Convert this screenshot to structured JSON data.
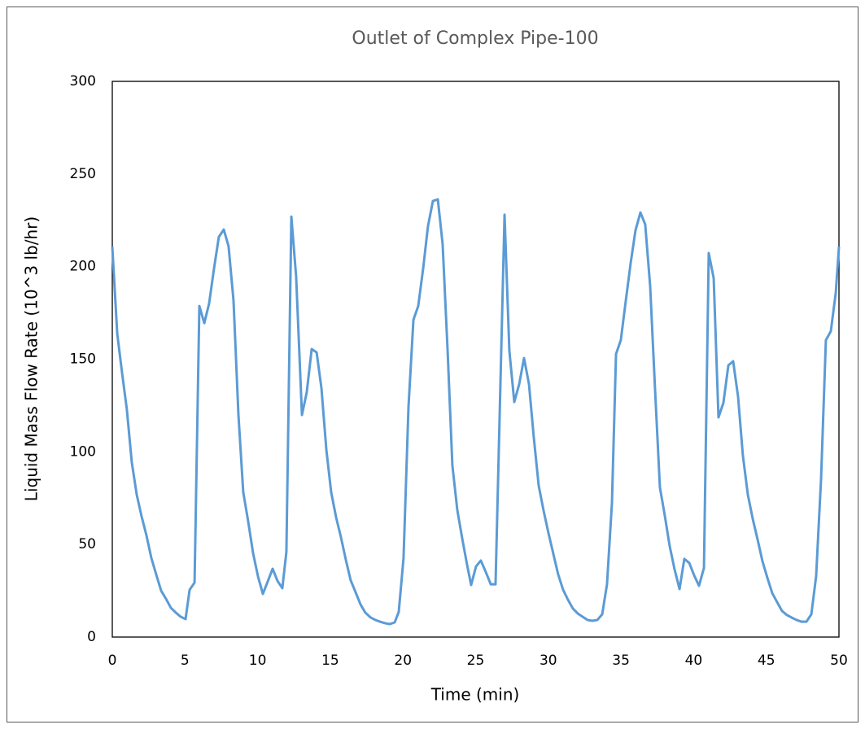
{
  "chart_data": {
    "type": "line",
    "title": "Outlet of Complex Pipe-100",
    "x_label": "Time (min)",
    "y_label": "Liquid Mass Flow Rate (10^3 lb/hr)",
    "color": "#5b9bd5",
    "grid": false,
    "xlim": [
      0,
      50
    ],
    "xticks": [
      0,
      5,
      10,
      15,
      20,
      25,
      30,
      35,
      40,
      45,
      50
    ],
    "ylim": [
      0,
      300
    ],
    "yticks": [
      0,
      50,
      100,
      150,
      200,
      250,
      300
    ],
    "x": [
      0,
      0.34,
      0.67,
      1.0,
      1.34,
      1.68,
      2.02,
      2.35,
      2.69,
      3.02,
      3.36,
      3.7,
      4.03,
      4.37,
      4.7,
      5.04,
      5.32,
      5.66,
      5.99,
      6.33,
      6.66,
      7.0,
      7.33,
      7.67,
      8.0,
      8.34,
      8.68,
      9.01,
      9.35,
      9.69,
      10.02,
      10.36,
      10.69,
      11.03,
      11.37,
      11.7,
      11.98,
      12.32,
      12.65,
      13.05,
      13.38,
      13.72,
      14.06,
      14.39,
      14.73,
      15.06,
      15.4,
      15.73,
      16.07,
      16.4,
      16.74,
      17.08,
      17.41,
      17.75,
      18.08,
      18.42,
      18.76,
      19.09,
      19.43,
      19.71,
      20.04,
      20.38,
      20.72,
      21.05,
      21.39,
      21.72,
      22.06,
      22.4,
      22.73,
      23.07,
      23.4,
      23.74,
      24.08,
      24.41,
      24.69,
      25.03,
      25.36,
      25.7,
      26.04,
      26.37,
      26.99,
      27.32,
      27.66,
      28.0,
      28.33,
      28.67,
      29.0,
      29.34,
      29.68,
      30.01,
      30.35,
      30.68,
      31.02,
      31.35,
      31.69,
      32.03,
      32.36,
      32.7,
      33.03,
      33.37,
      33.71,
      34.04,
      34.38,
      34.66,
      34.99,
      35.33,
      35.67,
      36.0,
      36.34,
      36.67,
      37.01,
      37.35,
      37.68,
      38.02,
      38.35,
      38.69,
      39.03,
      39.36,
      39.7,
      40.03,
      40.37,
      40.71,
      41.04,
      41.38,
      41.71,
      42.05,
      42.39,
      42.72,
      43.06,
      43.39,
      43.73,
      44.07,
      44.4,
      44.74,
      45.07,
      45.41,
      45.74,
      46.08,
      46.42,
      46.75,
      47.09,
      47.42,
      47.76,
      48.1,
      48.43,
      48.77,
      49.1,
      49.44,
      49.78,
      50
    ],
    "values": [
      210.8,
      163.8,
      142.7,
      123,
      94.4,
      76.9,
      65,
      54.9,
      42.6,
      33.8,
      25,
      20.6,
      15.8,
      13.2,
      11,
      9.7,
      25.5,
      29.4,
      178.7,
      169.5,
      180,
      199,
      216,
      220,
      211,
      181.8,
      119.9,
      78.2,
      62.4,
      45.2,
      32.9,
      23.3,
      29.9,
      36.9,
      30.3,
      26.4,
      46.1,
      227,
      194.6,
      119.9,
      132.2,
      155.5,
      153.7,
      134.4,
      101,
      78.2,
      64.6,
      54,
      41.7,
      30.7,
      24.2,
      17.6,
      13.2,
      10.7,
      9.3,
      8.3,
      7.5,
      7,
      7.9,
      13.6,
      42.6,
      124.3,
      171.3,
      178.7,
      199,
      221.8,
      235.4,
      236.3,
      212.1,
      155,
      92.7,
      68.5,
      53.1,
      39.1,
      28.1,
      38.2,
      41.3,
      35.1,
      28.5,
      28.5,
      228,
      154.6,
      126.9,
      136.6,
      150.6,
      136.6,
      108,
      81.7,
      68.1,
      56.2,
      44.8,
      33.8,
      25.5,
      20.2,
      15.4,
      12.7,
      11,
      9.2,
      8.8,
      9.2,
      12.3,
      28.5,
      72.5,
      152.8,
      160.3,
      181.4,
      202,
      219.6,
      229.2,
      222.7,
      189.3,
      133,
      80.8,
      65.4,
      49.2,
      36.5,
      25.9,
      42.2,
      40,
      33.4,
      27.7,
      37.3,
      207.3,
      193.7,
      118.6,
      126.5,
      146.7,
      148.9,
      129.6,
      97.9,
      76.9,
      63.7,
      52.7,
      40.8,
      32.1,
      23.7,
      18.9,
      14.1,
      11.9,
      10.5,
      9.2,
      8.3,
      8.3,
      12.3,
      32.9,
      85.6,
      160.3,
      165.1,
      185.8,
      210.8
    ]
  }
}
